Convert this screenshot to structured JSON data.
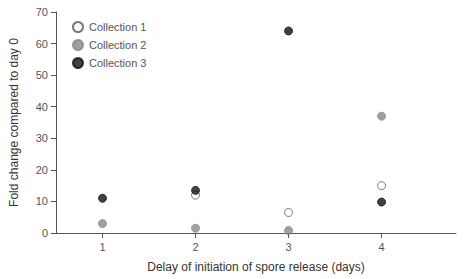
{
  "chart_data": {
    "type": "scatter",
    "xlabel": "Delay of initiation of spore release (days)",
    "ylabel": "Fold change compared to day 0",
    "xlim": [
      0.5,
      4.8
    ],
    "xticks": [
      1,
      2,
      3,
      4
    ],
    "ylim": [
      0,
      70
    ],
    "yticks": [
      0,
      10,
      20,
      30,
      40,
      50,
      60,
      70
    ],
    "grid": false,
    "legend": "upper left",
    "series": [
      {
        "name": "Collection 1",
        "color": "#555555",
        "marker": "hollow",
        "x": [
          2,
          3,
          4
        ],
        "values": [
          12,
          6.5,
          15
        ]
      },
      {
        "name": "Collection 2",
        "color": "#888888",
        "marker": "circle",
        "x": [
          1,
          2,
          3,
          4
        ],
        "values": [
          3,
          1.5,
          0.8,
          37
        ]
      },
      {
        "name": "Collection 3",
        "color": "#111111",
        "marker": "circle",
        "x": [
          1,
          2,
          3,
          4
        ],
        "values": [
          11,
          13.5,
          64,
          9.8
        ]
      }
    ]
  }
}
